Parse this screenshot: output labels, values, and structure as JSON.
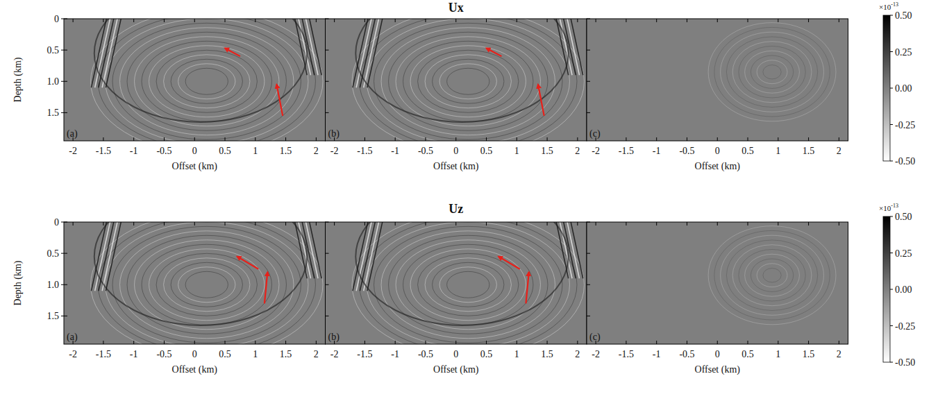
{
  "chart_data": [
    {
      "type": "heatmap",
      "title": "Ux",
      "xlabel": "Offset (km)",
      "ylabel": "Depth (km)",
      "xlim": [
        -2.15,
        2.15
      ],
      "xticks": [
        -2,
        -1.5,
        -1,
        -0.5,
        0,
        0.5,
        1,
        1.5,
        2
      ],
      "ylim": [
        0,
        1.95
      ],
      "yticks": [
        {
          "value": 0,
          "label": "0"
        },
        {
          "value": 0.5,
          "label": "0.5"
        },
        {
          "value": 1,
          "label": "1.0"
        },
        {
          "value": 1.5,
          "label": "1.5"
        }
      ],
      "colorbar": {
        "range": [
          -0.5,
          0.5
        ],
        "scale_base": "×10",
        "scale_exponent": "-13",
        "ticks": [
          {
            "value": 0.5,
            "label": "0.50"
          },
          {
            "value": 0.25,
            "label": "0.25"
          },
          {
            "value": 0,
            "label": "0.00"
          },
          {
            "value": -0.25,
            "label": "-0.25"
          },
          {
            "value": -0.5,
            "label": "-0.50"
          }
        ]
      },
      "panels": [
        {
          "label": "(a)",
          "arrows": [
            {
              "tail": [
                0.75,
                0.6
              ],
              "head": [
                0.5,
                0.47
              ]
            },
            {
              "tail": [
                1.45,
                1.55
              ],
              "head": [
                1.35,
                1.05
              ]
            }
          ]
        },
        {
          "label": "(b)",
          "arrows": [
            {
              "tail": [
                0.75,
                0.6
              ],
              "head": [
                0.5,
                0.47
              ]
            },
            {
              "tail": [
                1.45,
                1.55
              ],
              "head": [
                1.35,
                1.05
              ]
            }
          ]
        },
        {
          "label": "(c)",
          "arrows": []
        }
      ]
    },
    {
      "type": "heatmap",
      "title": "Uz",
      "xlabel": "Offset (km)",
      "ylabel": "Depth (km)",
      "xlim": [
        -2.15,
        2.15
      ],
      "xticks": [
        -2,
        -1.5,
        -1,
        -0.5,
        0,
        0.5,
        1,
        1.5,
        2
      ],
      "ylim": [
        0,
        1.95
      ],
      "yticks": [
        {
          "value": 0,
          "label": "0"
        },
        {
          "value": 0.5,
          "label": "0.5"
        },
        {
          "value": 1,
          "label": "1.0"
        },
        {
          "value": 1.5,
          "label": "1.5"
        }
      ],
      "colorbar": {
        "range": [
          -0.5,
          0.5
        ],
        "scale_base": "×10",
        "scale_exponent": "-13",
        "ticks": [
          {
            "value": 0.5,
            "label": "0.50"
          },
          {
            "value": 0.25,
            "label": "0.25"
          },
          {
            "value": 0,
            "label": "0.00"
          },
          {
            "value": -0.25,
            "label": "-0.25"
          },
          {
            "value": -0.5,
            "label": "-0.50"
          }
        ]
      },
      "panels": [
        {
          "label": "(a)",
          "arrows": [
            {
              "tail": [
                1.05,
                0.75
              ],
              "head": [
                0.7,
                0.55
              ]
            },
            {
              "tail": [
                1.15,
                1.3
              ],
              "head": [
                1.2,
                0.8
              ]
            }
          ]
        },
        {
          "label": "(b)",
          "arrows": [
            {
              "tail": [
                1.05,
                0.75
              ],
              "head": [
                0.7,
                0.55
              ]
            },
            {
              "tail": [
                1.15,
                1.3
              ],
              "head": [
                1.2,
                0.8
              ]
            }
          ]
        },
        {
          "label": "(c)",
          "arrows": []
        }
      ]
    }
  ]
}
